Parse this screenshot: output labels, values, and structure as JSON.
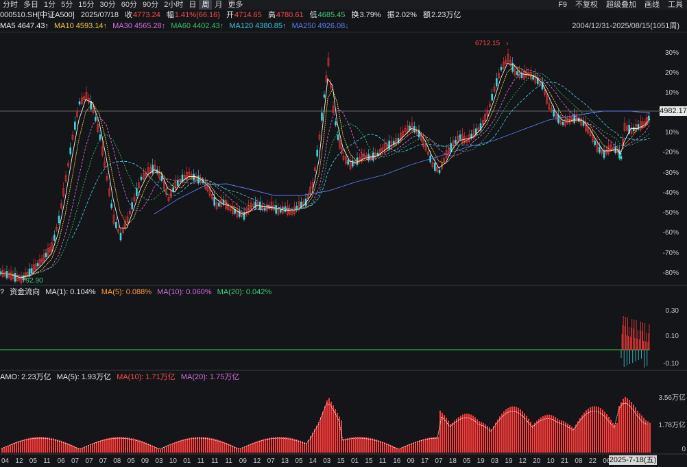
{
  "tabs": [
    {
      "label": "分时",
      "active": false
    },
    {
      "label": "多日",
      "active": false
    },
    {
      "label": "1分",
      "active": false
    },
    {
      "label": "5分",
      "active": false
    },
    {
      "label": "15分",
      "active": false
    },
    {
      "label": "30分",
      "active": false
    },
    {
      "label": "60分",
      "active": false
    },
    {
      "label": "90分",
      "active": false
    },
    {
      "label": "2小时",
      "active": false
    },
    {
      "label": "日",
      "active": false
    },
    {
      "label": "周",
      "active": true
    },
    {
      "label": "月",
      "active": false
    },
    {
      "label": "更多",
      "active": false
    }
  ],
  "toolbar_right": [
    "F9",
    "不复权",
    "超级叠加",
    "画线",
    "工具"
  ],
  "quote": {
    "code": "000510.SH[中证A500]",
    "date": "2025/07/18",
    "close_label": "收",
    "close": "4773.24",
    "change_label": "幅",
    "change": "1.41%(66.16)",
    "open_label": "开",
    "open": "4714.65",
    "high_label": "高",
    "high": "4780.61",
    "low_label": "低",
    "low": "4685.45",
    "turnover_label": "换",
    "turnover": "3.79%",
    "amplitude_label": "振",
    "amplitude": "2.02%",
    "amount_label": "额",
    "amount": "2.23万亿"
  },
  "ma": {
    "ma5": "MA5 4647.43↑",
    "ma10": "MA10 4593.14↑",
    "ma30": "MA30 4565.28↑",
    "ma60": "MA60 4402.43↑",
    "ma120": "MA120 4380.85↑",
    "ma250": "MA250 4926.08↓",
    "range": "2004/12/31-2025/08/15(1051周)"
  },
  "main_chart": {
    "high_label": "6712.15",
    "low_label": "792.90",
    "current_price": "4982.17",
    "pct_ticks": [
      "30%",
      "20%",
      "10%",
      "0%",
      "10%",
      "-20%",
      "-30%",
      "-40%",
      "-50%",
      "-60%",
      "-70%",
      "-80%"
    ],
    "colors": {
      "up": "#ff3b3b",
      "down": "#3fd6e0",
      "ma5": "#f2f2f2",
      "ma10": "#f2c94c",
      "ma30": "#d36ce0",
      "ma60": "#31c26a",
      "ma120": "#3fc3e0",
      "ma250": "#5b7cf5"
    }
  },
  "flow_panel": {
    "title": "资金流向",
    "question": "?",
    "ma1": "MA(1): 0.104%",
    "ma5": "MA(5): 0.088%",
    "ma10": "MA(10): 0.060%",
    "ma20": "MA(20): 0.042%",
    "ticks": [
      "0.30",
      "0.10",
      "-0.10"
    ]
  },
  "amo_panel": {
    "amo": "AMO: 2.23万亿",
    "ma5": "MA(5): 1.93万亿",
    "ma10": "MA(10): 1.71万亿",
    "ma20": "MA(20): 1.75万亿",
    "ticks": [
      "3.56万亿",
      "1.78万亿",
      "0"
    ]
  },
  "x_axis": {
    "labels": [
      "04",
      "12",
      "05",
      "11",
      "06",
      "07",
      "07",
      "07",
      "08",
      "05",
      "09",
      "03",
      "10",
      "01",
      "11",
      "11",
      "11",
      "09",
      "12",
      "07",
      "13",
      "05",
      "14",
      "03",
      "15",
      "01",
      "15",
      "11",
      "16",
      "09",
      "17",
      "07",
      "18",
      "05",
      "19",
      "03",
      "19",
      "12",
      "20",
      "10",
      "21",
      "08",
      "22",
      "06",
      "23",
      "04",
      "2"
    ],
    "cursor_date": "2025-7-18(五)"
  }
}
